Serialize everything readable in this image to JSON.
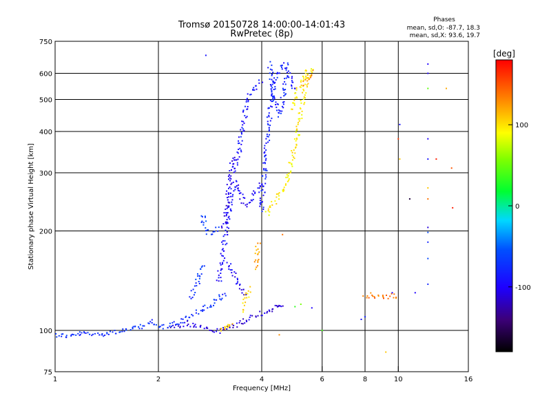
{
  "chart_data": {
    "type": "scatter",
    "title": "Tromsø 20150728 14:00:00-14:01:43",
    "subtitle": "RwPretec (8p)",
    "xlabel": "Frequency [MHz]",
    "ylabel": "Stationary phase Virtual Height [km]",
    "x_scale": "log",
    "y_scale": "log",
    "xlim": [
      1,
      16
    ],
    "ylim": [
      75,
      750
    ],
    "x_ticks": [
      1,
      2,
      4,
      6,
      8,
      10,
      16
    ],
    "y_ticks": [
      75,
      100,
      200,
      300,
      400,
      500,
      600,
      750
    ],
    "x_tick_labels": [
      "1",
      "2",
      "4",
      "6",
      "8",
      "10",
      "16"
    ],
    "y_tick_labels": [
      "75",
      "100",
      "200",
      "300",
      "400",
      "500",
      "600",
      "750"
    ],
    "x_gridlines": [
      2,
      4,
      6,
      8,
      10
    ],
    "y_gridlines": [
      100,
      200,
      300,
      400,
      500,
      600
    ],
    "stats": {
      "heading": "Phases",
      "line1": "mean, sd,O: -87.7, 18.3",
      "line2": "mean, sd,X:  93.6, 19.7"
    },
    "colorbar": {
      "label": "[deg]",
      "range": [
        -180,
        180
      ],
      "ticks": [
        100,
        0,
        -100
      ],
      "tick_labels": [
        "100",
        "0",
        "-100"
      ]
    },
    "series": [
      {
        "mode": "O",
        "mean_phase": -87.7,
        "traces": [
          {
            "phase": -75,
            "points": [
              [
                1.0,
                97
              ],
              [
                1.1,
                96
              ],
              [
                1.2,
                98
              ],
              [
                1.3,
                97
              ],
              [
                1.4,
                98
              ],
              [
                1.5,
                99
              ],
              [
                1.6,
                100
              ],
              [
                1.7,
                101
              ],
              [
                1.8,
                103
              ],
              [
                1.9,
                106
              ],
              [
                2.0,
                102
              ],
              [
                2.2,
                104
              ],
              [
                2.4,
                108
              ],
              [
                2.6,
                114
              ],
              [
                2.8,
                118
              ],
              [
                2.9,
                121
              ],
              [
                3.0,
                125
              ],
              [
                3.1,
                127
              ],
              [
                3.2,
                129
              ]
            ]
          },
          {
            "phase": -70,
            "points": [
              [
                2.5,
                125
              ],
              [
                2.55,
                133
              ],
              [
                2.6,
                140
              ],
              [
                2.65,
                150
              ],
              [
                2.7,
                160
              ]
            ]
          },
          {
            "phase": -65,
            "points": [
              [
                2.7,
                225
              ],
              [
                2.72,
                210
              ],
              [
                2.78,
                200
              ],
              [
                2.85,
                196
              ],
              [
                2.95,
                200
              ],
              [
                3.0,
                206
              ]
            ]
          },
          {
            "phase": -95,
            "points": [
              [
                3.0,
                140
              ],
              [
                3.05,
                160
              ],
              [
                3.1,
                180
              ],
              [
                3.15,
                200
              ],
              [
                3.2,
                225
              ],
              [
                3.25,
                250
              ],
              [
                3.3,
                270
              ],
              [
                3.4,
                280
              ],
              [
                3.5,
                250
              ],
              [
                3.6,
                240
              ],
              [
                3.7,
                245
              ],
              [
                3.8,
                255
              ],
              [
                3.9,
                265
              ],
              [
                4.0,
                280
              ]
            ]
          },
          {
            "phase": -100,
            "points": [
              [
                3.2,
                160
              ],
              [
                3.3,
                150
              ],
              [
                3.35,
                145
              ],
              [
                3.4,
                140
              ],
              [
                3.5,
                135
              ],
              [
                3.55,
                130
              ],
              [
                3.6,
                128
              ]
            ]
          },
          {
            "phase": -105,
            "points": [
              [
                3.1,
                205
              ],
              [
                3.15,
                230
              ],
              [
                3.2,
                260
              ],
              [
                3.25,
                300
              ],
              [
                3.3,
                340
              ]
            ]
          },
          {
            "phase": -90,
            "points": [
              [
                3.3,
                300
              ],
              [
                3.4,
                330
              ],
              [
                3.45,
                360
              ],
              [
                3.5,
                400
              ],
              [
                3.55,
                430
              ],
              [
                3.6,
                470
              ],
              [
                3.7,
                520
              ],
              [
                3.8,
                540
              ],
              [
                3.9,
                560
              ],
              [
                4.0,
                570
              ]
            ]
          },
          {
            "phase": -85,
            "points": [
              [
                4.0,
                230
              ],
              [
                4.05,
                280
              ],
              [
                4.1,
                330
              ],
              [
                4.15,
                380
              ],
              [
                4.2,
                430
              ],
              [
                4.25,
                490
              ],
              [
                4.3,
                540
              ],
              [
                4.4,
                580
              ],
              [
                4.5,
                610
              ],
              [
                4.6,
                630
              ],
              [
                4.7,
                640
              ],
              [
                4.8,
                600
              ],
              [
                4.9,
                560
              ],
              [
                5.0,
                520
              ]
            ]
          },
          {
            "phase": -80,
            "points": [
              [
                4.2,
                640
              ],
              [
                4.25,
                600
              ],
              [
                4.3,
                560
              ],
              [
                4.35,
                520
              ],
              [
                4.4,
                480
              ],
              [
                4.5,
                450
              ],
              [
                4.6,
                500
              ],
              [
                4.7,
                560
              ],
              [
                4.8,
                610
              ]
            ]
          },
          {
            "phase": -110,
            "points": [
              [
                2.2,
                102
              ],
              [
                2.3,
                104
              ],
              [
                2.4,
                105
              ],
              [
                2.9,
                100
              ],
              [
                3.0,
                99
              ],
              [
                4.45,
                118
              ],
              [
                4.55,
                117
              ],
              [
                4.65,
                119
              ]
            ]
          }
        ]
      },
      {
        "mode": "X",
        "mean_phase": 93.6,
        "traces": [
          {
            "phase": 110,
            "points": [
              [
                3.05,
                100
              ],
              [
                3.1,
                101
              ],
              [
                3.15,
                102
              ],
              [
                3.2,
                104
              ],
              [
                3.3,
                106
              ]
            ]
          },
          {
            "phase": 105,
            "points": [
              [
                3.5,
                115
              ],
              [
                3.55,
                120
              ],
              [
                3.6,
                125
              ],
              [
                3.65,
                130
              ],
              [
                3.7,
                135
              ]
            ]
          },
          {
            "phase": 120,
            "points": [
              [
                3.85,
                155
              ],
              [
                3.88,
                165
              ],
              [
                3.9,
                175
              ],
              [
                3.92,
                185
              ]
            ]
          },
          {
            "phase": 95,
            "points": [
              [
                4.15,
                225
              ],
              [
                4.25,
                235
              ],
              [
                4.35,
                245
              ],
              [
                4.45,
                255
              ],
              [
                4.6,
                265
              ],
              [
                4.7,
                275
              ],
              [
                4.8,
                300
              ],
              [
                4.9,
                330
              ],
              [
                5.0,
                360
              ],
              [
                5.1,
                400
              ],
              [
                5.2,
                460
              ],
              [
                5.3,
                520
              ],
              [
                5.4,
                570
              ],
              [
                5.5,
                600
              ],
              [
                5.6,
                630
              ]
            ]
          },
          {
            "phase": 100,
            "points": [
              [
                4.9,
                470
              ],
              [
                5.0,
                500
              ],
              [
                5.1,
                540
              ],
              [
                5.2,
                570
              ],
              [
                5.3,
                590
              ],
              [
                5.4,
                610
              ],
              [
                5.5,
                620
              ]
            ]
          },
          {
            "phase": 130,
            "points": [
              [
                5.3,
                560
              ],
              [
                5.4,
                580
              ],
              [
                5.5,
                590
              ],
              [
                5.6,
                610
              ]
            ]
          },
          {
            "phase": 140,
            "points": [
              [
                8.0,
                127
              ],
              [
                8.3,
                128
              ],
              [
                8.6,
                127
              ],
              [
                8.9,
                128
              ],
              [
                9.2,
                126
              ],
              [
                9.5,
                127
              ],
              [
                10.0,
                127
              ]
            ]
          }
        ]
      }
    ],
    "scatter_points": [
      {
        "x": 2.75,
        "y": 680,
        "phase": -90
      },
      {
        "x": 4.5,
        "y": 97,
        "phase": 130
      },
      {
        "x": 4.6,
        "y": 195,
        "phase": 140
      },
      {
        "x": 5.0,
        "y": 118,
        "phase": 20
      },
      {
        "x": 5.2,
        "y": 120,
        "phase": 50
      },
      {
        "x": 5.6,
        "y": 117,
        "phase": -100
      },
      {
        "x": 6.0,
        "y": 100,
        "phase": 30
      },
      {
        "x": 7.8,
        "y": 108,
        "phase": -90
      },
      {
        "x": 8.0,
        "y": 110,
        "phase": -80
      },
      {
        "x": 9.2,
        "y": 86,
        "phase": 110
      },
      {
        "x": 9.6,
        "y": 130,
        "phase": -100
      },
      {
        "x": 10.0,
        "y": 380,
        "phase": 160
      },
      {
        "x": 10.1,
        "y": 420,
        "phase": -90
      },
      {
        "x": 10.1,
        "y": 330,
        "phase": 110
      },
      {
        "x": 10.8,
        "y": 250,
        "phase": -160
      },
      {
        "x": 11.2,
        "y": 130,
        "phase": -100
      },
      {
        "x": 12.2,
        "y": 640,
        "phase": -100
      },
      {
        "x": 12.2,
        "y": 600,
        "phase": -100
      },
      {
        "x": 12.2,
        "y": 540,
        "phase": 40
      },
      {
        "x": 12.2,
        "y": 380,
        "phase": -100
      },
      {
        "x": 12.2,
        "y": 330,
        "phase": -90
      },
      {
        "x": 12.2,
        "y": 270,
        "phase": 110
      },
      {
        "x": 12.2,
        "y": 250,
        "phase": 140
      },
      {
        "x": 12.2,
        "y": 205,
        "phase": -110
      },
      {
        "x": 12.2,
        "y": 198,
        "phase": -60
      },
      {
        "x": 12.2,
        "y": 185,
        "phase": -80
      },
      {
        "x": 12.2,
        "y": 165,
        "phase": -60
      },
      {
        "x": 12.2,
        "y": 138,
        "phase": -80
      },
      {
        "x": 12.9,
        "y": 330,
        "phase": 170
      },
      {
        "x": 13.8,
        "y": 540,
        "phase": 120
      },
      {
        "x": 14.3,
        "y": 310,
        "phase": 150
      },
      {
        "x": 14.4,
        "y": 235,
        "phase": 170
      }
    ]
  }
}
